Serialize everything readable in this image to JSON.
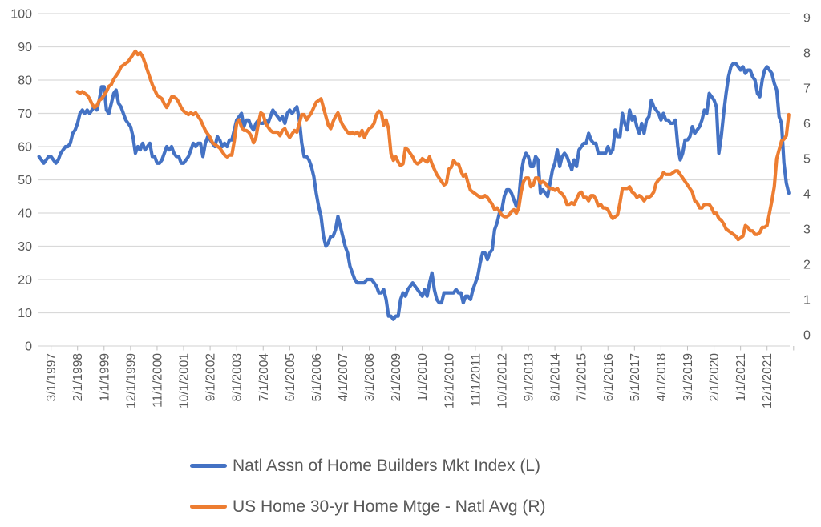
{
  "chart_data": {
    "type": "line",
    "title": "",
    "x_start_month": "10/1/1996",
    "x_frequency": "monthly",
    "x_tick_labels": [
      "3/1/1997",
      "2/1/1998",
      "1/1/1999",
      "12/1/1999",
      "11/1/2000",
      "10/1/2001",
      "9/1/2002",
      "8/1/2003",
      "7/1/2004",
      "6/1/2005",
      "5/1/2006",
      "4/1/2007",
      "3/1/2008",
      "2/1/2009",
      "1/1/2010",
      "12/1/2010",
      "11/1/2011",
      "10/1/2012",
      "9/1/2013",
      "8/1/2014",
      "7/1/2015",
      "6/1/2016",
      "5/1/2017",
      "4/1/2018",
      "3/1/2019",
      "2/1/2020",
      "1/1/2021",
      "12/1/2021"
    ],
    "x_tick_label_every_n_months": 11,
    "left_axis": {
      "min": 0,
      "max": 100,
      "ticks": [
        0,
        10,
        20,
        30,
        40,
        50,
        60,
        70,
        80,
        90,
        100
      ]
    },
    "right_axis": {
      "min": 0,
      "max": 9,
      "ticks": [
        0,
        1,
        2,
        3,
        4,
        5,
        6,
        7,
        8,
        9
      ]
    },
    "grid": "horizontal",
    "legend_position": "bottom-left",
    "colors": {
      "grid": "#d9d9d9",
      "tick": "#bfbfbf",
      "text": "#595959",
      "background": "#ffffff"
    },
    "series": [
      {
        "name": "Natl Assn of Home Builders Mkt Index (L)",
        "axis": "left",
        "color": "#4472C4",
        "values": [
          57,
          56,
          55,
          56,
          57,
          57,
          56,
          55,
          56,
          58,
          59,
          60,
          60,
          61,
          64,
          65,
          67,
          70,
          71,
          70,
          71,
          70,
          71,
          72,
          71,
          74,
          78,
          78,
          71,
          70,
          73,
          76,
          77,
          73,
          72,
          70,
          68,
          67,
          66,
          63,
          58,
          60,
          59,
          61,
          59,
          60,
          61,
          57,
          57,
          55,
          55,
          56,
          58,
          60,
          59,
          60,
          58,
          57,
          57,
          55,
          55,
          56,
          57,
          59,
          61,
          60,
          61,
          61,
          57,
          61,
          63,
          62,
          61,
          60,
          63,
          62,
          60,
          61,
          60,
          62,
          62,
          65,
          68,
          69,
          70,
          66,
          68,
          68,
          66,
          65,
          67,
          68,
          67,
          67,
          68,
          67,
          69,
          71,
          70,
          69,
          68,
          69,
          67,
          70,
          71,
          70,
          71,
          72,
          68,
          61,
          57,
          57,
          56,
          54,
          51,
          46,
          42,
          39,
          33,
          30,
          31,
          33,
          33,
          35,
          39,
          36,
          33,
          30,
          28,
          24,
          22,
          20,
          19,
          19,
          19,
          19,
          20,
          20,
          20,
          19,
          18,
          16,
          16,
          17,
          14,
          9,
          9,
          8,
          9,
          9,
          14,
          16,
          15,
          17,
          18,
          19,
          18,
          17,
          16,
          15,
          17,
          15,
          19,
          22,
          17,
          14,
          13,
          13,
          16,
          16,
          16,
          16,
          16,
          17,
          16,
          16,
          13,
          15,
          15,
          14,
          17,
          19,
          21,
          25,
          28,
          28,
          26,
          28,
          29,
          35,
          37,
          40,
          41,
          45,
          47,
          47,
          46,
          44,
          42,
          44,
          52,
          56,
          58,
          57,
          54,
          54,
          57,
          56,
          46,
          47,
          46,
          45,
          49,
          53,
          55,
          59,
          54,
          57,
          58,
          57,
          55,
          53,
          56,
          54,
          59,
          60,
          61,
          61,
          64,
          62,
          61,
          61,
          58,
          58,
          58,
          58,
          60,
          58,
          59,
          65,
          63,
          63,
          70,
          67,
          65,
          71,
          68,
          69,
          66,
          64,
          67,
          64,
          68,
          69,
          74,
          72,
          71,
          70,
          68,
          70,
          68,
          68,
          67,
          67,
          68,
          60,
          56,
          58,
          62,
          62,
          63,
          66,
          64,
          65,
          66,
          68,
          71,
          70,
          76,
          75,
          74,
          72,
          58,
          63,
          70,
          76,
          81,
          84,
          85,
          85,
          84,
          83,
          84,
          82,
          83,
          83,
          81,
          80,
          76,
          75,
          80,
          83,
          84,
          83,
          82,
          79,
          77,
          69,
          67,
          55,
          49,
          46
        ]
      },
      {
        "name": "US Home 30-yr Home Mtge - Natl Avg (R)",
        "axis": "right",
        "color": "#ED7D31",
        "values": [
          null,
          null,
          null,
          null,
          null,
          null,
          null,
          null,
          null,
          null,
          null,
          null,
          null,
          null,
          null,
          null,
          6.9,
          6.85,
          6.9,
          6.85,
          6.8,
          6.7,
          6.55,
          6.45,
          6.5,
          6.65,
          6.7,
          6.8,
          6.9,
          7.05,
          7.1,
          7.25,
          7.35,
          7.45,
          7.6,
          7.65,
          7.7,
          7.75,
          7.85,
          7.95,
          8.05,
          7.95,
          8.0,
          7.9,
          7.7,
          7.5,
          7.3,
          7.1,
          6.95,
          6.8,
          6.75,
          6.7,
          6.55,
          6.45,
          6.6,
          6.75,
          6.75,
          6.7,
          6.6,
          6.45,
          6.35,
          6.3,
          6.25,
          6.3,
          6.25,
          6.3,
          6.2,
          6.1,
          5.95,
          5.8,
          5.7,
          5.6,
          5.45,
          5.4,
          5.35,
          5.3,
          5.2,
          5.1,
          5.05,
          5.1,
          5.1,
          5.5,
          6.0,
          6.1,
          5.9,
          5.8,
          5.8,
          5.75,
          5.65,
          5.45,
          5.6,
          6.0,
          6.3,
          6.25,
          6.0,
          5.9,
          5.8,
          5.75,
          5.75,
          5.75,
          5.65,
          5.8,
          5.85,
          5.7,
          5.6,
          5.7,
          5.8,
          5.75,
          6.0,
          6.25,
          6.25,
          6.1,
          6.2,
          6.3,
          6.45,
          6.6,
          6.65,
          6.7,
          6.45,
          6.2,
          5.95,
          5.85,
          6.05,
          6.2,
          6.3,
          6.1,
          5.95,
          5.85,
          5.75,
          5.7,
          5.75,
          5.7,
          5.75,
          5.65,
          5.8,
          5.6,
          5.75,
          5.85,
          5.9,
          6.0,
          6.25,
          6.35,
          6.3,
          5.95,
          6.1,
          5.85,
          5.15,
          4.95,
          5.05,
          4.9,
          4.8,
          4.85,
          5.3,
          5.25,
          5.15,
          5.05,
          4.9,
          4.85,
          4.9,
          5.0,
          4.95,
          4.9,
          5.05,
          4.85,
          4.7,
          4.55,
          4.45,
          4.35,
          4.25,
          4.3,
          4.7,
          4.75,
          4.95,
          4.85,
          4.85,
          4.65,
          4.5,
          4.55,
          4.3,
          4.1,
          4.05,
          4.0,
          3.95,
          3.9,
          3.9,
          3.95,
          3.9,
          3.8,
          3.7,
          3.55,
          3.6,
          3.5,
          3.4,
          3.35,
          3.35,
          3.4,
          3.5,
          3.55,
          3.45,
          3.6,
          4.05,
          4.35,
          4.45,
          4.45,
          4.2,
          4.25,
          4.45,
          4.45,
          4.3,
          4.35,
          4.3,
          4.2,
          4.15,
          4.15,
          4.1,
          4.15,
          4.05,
          4.0,
          3.9,
          3.7,
          3.7,
          3.75,
          3.7,
          3.85,
          4.0,
          4.05,
          3.9,
          3.9,
          3.8,
          3.95,
          3.95,
          3.85,
          3.65,
          3.7,
          3.6,
          3.6,
          3.55,
          3.4,
          3.3,
          3.35,
          3.4,
          3.75,
          4.15,
          4.15,
          4.15,
          4.2,
          4.05,
          4.0,
          3.9,
          3.95,
          3.9,
          3.8,
          3.9,
          3.9,
          3.95,
          4.05,
          4.3,
          4.4,
          4.45,
          4.6,
          4.55,
          4.55,
          4.55,
          4.6,
          4.65,
          4.65,
          4.55,
          4.45,
          4.35,
          4.25,
          4.15,
          4.05,
          3.8,
          3.75,
          3.6,
          3.6,
          3.7,
          3.7,
          3.7,
          3.6,
          3.45,
          3.45,
          3.3,
          3.25,
          3.15,
          3.0,
          2.95,
          2.9,
          2.85,
          2.8,
          2.7,
          2.75,
          2.8,
          3.1,
          3.05,
          2.95,
          2.95,
          2.85,
          2.85,
          2.9,
          3.05,
          3.05,
          3.1,
          3.45,
          3.8,
          4.2,
          5.0,
          5.25,
          5.5,
          5.55,
          5.65,
          6.25
        ]
      }
    ]
  },
  "legend": {
    "item1": "Natl Assn of Home Builders Mkt Index (L)",
    "item2": "US Home 30-yr Home Mtge - Natl Avg (R)"
  }
}
